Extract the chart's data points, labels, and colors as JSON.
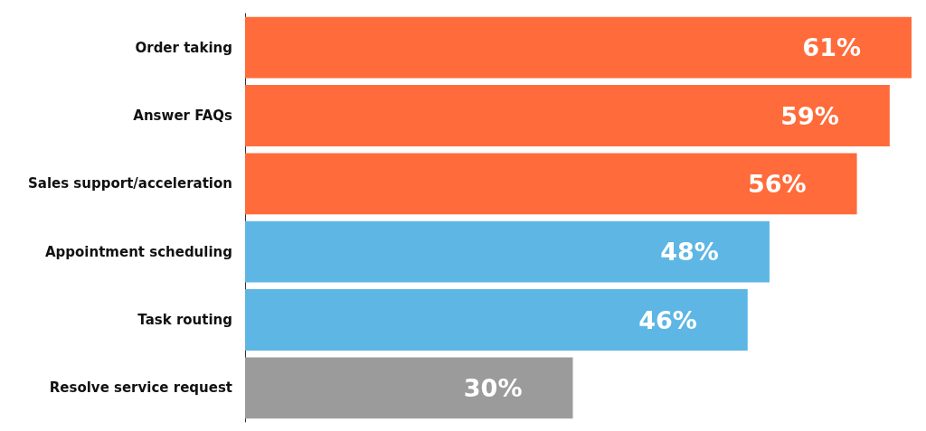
{
  "chart_data": {
    "type": "bar",
    "orientation": "horizontal",
    "categories": [
      "Order taking",
      "Answer FAQs",
      "Sales support/acceleration",
      "Appointment scheduling",
      "Task routing",
      "Resolve service request"
    ],
    "values": [
      61,
      59,
      56,
      48,
      46,
      30
    ],
    "value_labels": [
      "61%",
      "59%",
      "56%",
      "48%",
      "46%",
      "30%"
    ],
    "colors": [
      "#ff6b3a",
      "#ff6b3a",
      "#ff6b3a",
      "#5eb6e4",
      "#5eb6e4",
      "#9b9b9b"
    ],
    "xlim": [
      0,
      61
    ]
  }
}
